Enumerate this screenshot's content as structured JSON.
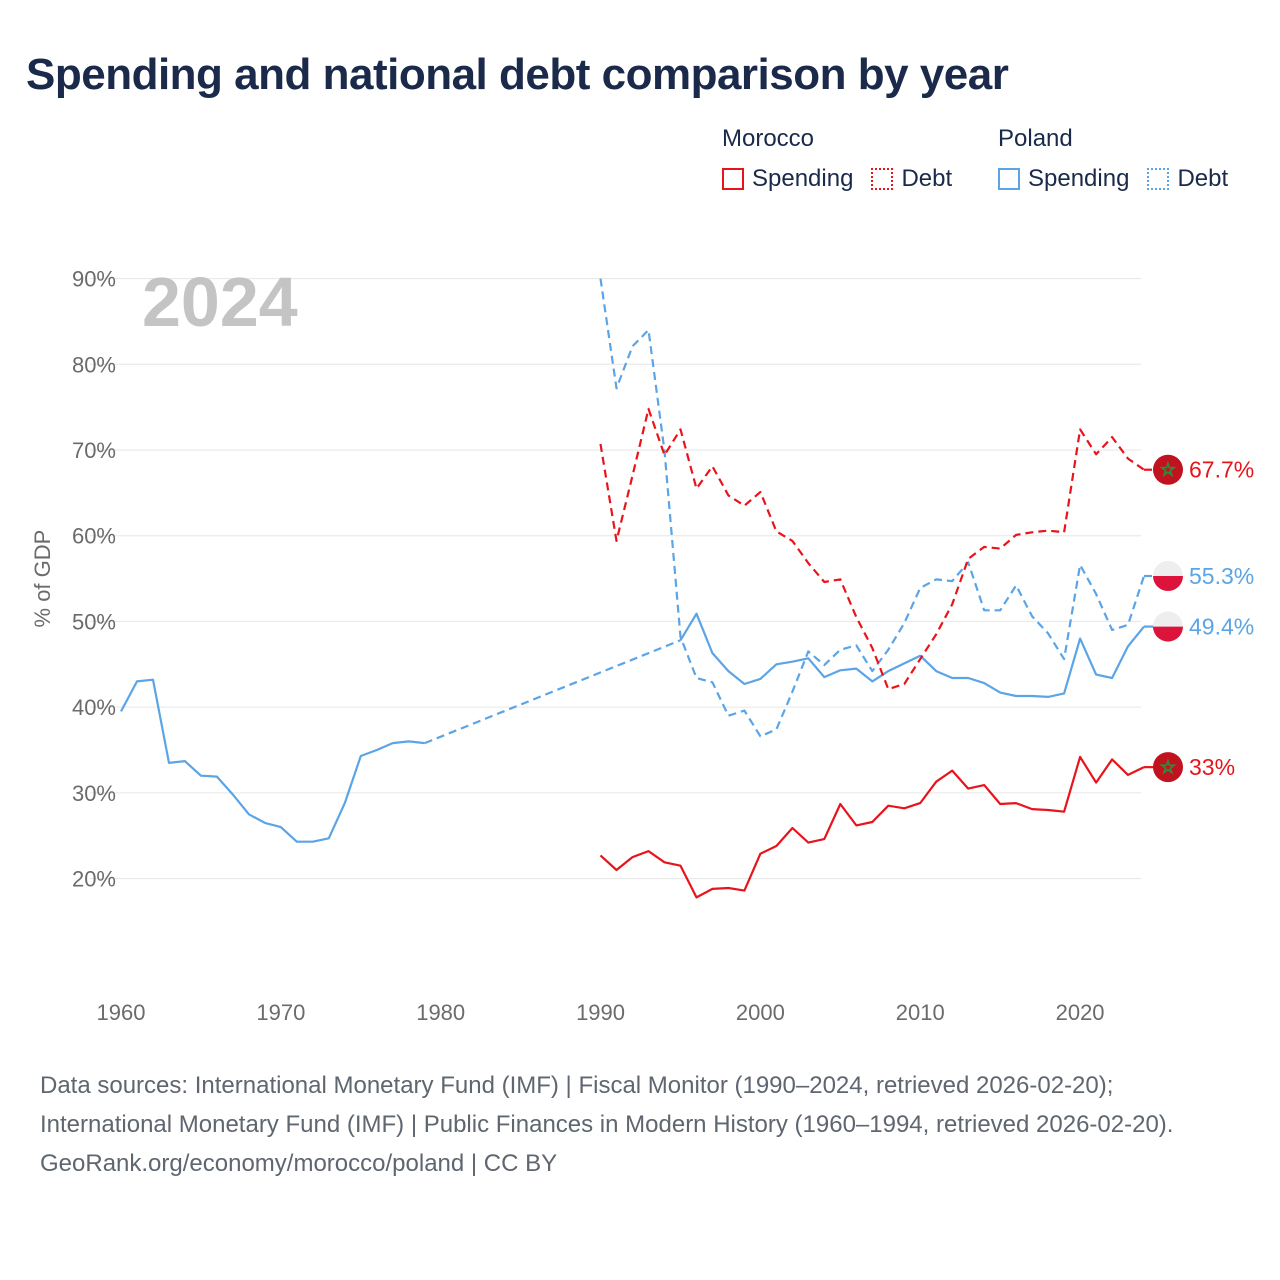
{
  "title": "Spending and national debt comparison by year",
  "legend": {
    "groups": [
      {
        "name": "Morocco",
        "color": "#e8141c",
        "items": [
          {
            "label": "Spending",
            "style": "solid"
          },
          {
            "label": "Debt",
            "style": "dotted"
          }
        ]
      },
      {
        "name": "Poland",
        "color": "#5ba4e6",
        "items": [
          {
            "label": "Spending",
            "style": "solid"
          },
          {
            "label": "Debt",
            "style": "dotted"
          }
        ]
      }
    ]
  },
  "footer": {
    "sources": "Data sources: International Monetary Fund (IMF) | Fiscal Monitor (1990–2024, retrieved 2026-02-20); International Monetary Fund (IMF) | Public Finances in Modern History (1960–1994, retrieved 2026-02-20).",
    "credit": "GeoRank.org/economy/morocco/poland | CC BY"
  },
  "chart_data": {
    "type": "line",
    "title": "Spending and national debt comparison by year",
    "year_watermark": "2024",
    "ylabel": "% of GDP",
    "xlabel": "",
    "xlim": [
      1960,
      2025.5
    ],
    "ylim": [
      14,
      91
    ],
    "x_ticks": [
      1960,
      1970,
      1980,
      1990,
      2000,
      2010,
      2020
    ],
    "y_ticks": [
      20,
      30,
      40,
      50,
      60,
      70,
      80,
      90
    ],
    "y_tick_suffix": "%",
    "grid": true,
    "series": [
      {
        "name": "Poland Spending",
        "country": "Poland",
        "metric": "Spending",
        "color": "#5ba4e6",
        "dash": "solid",
        "end_label": "49.4%",
        "flag": "poland",
        "x": [
          1960,
          1961,
          1962,
          1963,
          1964,
          1965,
          1966,
          1967,
          1968,
          1969,
          1970,
          1971,
          1972,
          1973,
          1974,
          1975,
          1976,
          1977,
          1978,
          1979,
          1995,
          1996,
          1997,
          1998,
          1999,
          2000,
          2001,
          2002,
          2003,
          2004,
          2005,
          2006,
          2007,
          2008,
          2009,
          2010,
          2011,
          2012,
          2013,
          2014,
          2015,
          2016,
          2017,
          2018,
          2019,
          2020,
          2021,
          2022,
          2023,
          2024
        ],
        "y": [
          39.5,
          43.0,
          43.2,
          33.5,
          33.7,
          32.0,
          31.9,
          29.8,
          27.5,
          26.5,
          26.0,
          24.3,
          24.3,
          24.7,
          28.8,
          34.3,
          35.0,
          35.8,
          36.0,
          35.8,
          47.8,
          50.9,
          46.3,
          44.2,
          42.7,
          43.3,
          45.0,
          45.3,
          45.7,
          43.5,
          44.3,
          44.5,
          43.0,
          44.2,
          45.1,
          46.0,
          44.2,
          43.4,
          43.4,
          42.8,
          41.7,
          41.3,
          41.3,
          41.2,
          41.6,
          48.0,
          43.8,
          43.4,
          47.1,
          49.4
        ],
        "gap": [
          1979,
          1995
        ]
      },
      {
        "name": "Poland Debt",
        "country": "Poland",
        "metric": "Debt",
        "color": "#5ba4e6",
        "dash": "dashed",
        "end_label": "55.3%",
        "flag": "poland",
        "x": [
          1990,
          1991,
          1992,
          1993,
          1994,
          1995,
          1996,
          1997,
          1998,
          1999,
          2000,
          2001,
          2002,
          2003,
          2004,
          2005,
          2006,
          2007,
          2008,
          2009,
          2010,
          2011,
          2012,
          2013,
          2014,
          2015,
          2016,
          2017,
          2018,
          2019,
          2020,
          2021,
          2022,
          2023,
          2024
        ],
        "y": [
          90.0,
          77.2,
          82.1,
          84.0,
          69.9,
          48.2,
          43.4,
          42.9,
          39.0,
          39.6,
          36.6,
          37.4,
          41.8,
          46.5,
          44.9,
          46.7,
          47.2,
          44.2,
          46.7,
          49.8,
          53.9,
          54.9,
          54.7,
          56.9,
          51.3,
          51.3,
          54.2,
          50.6,
          48.6,
          45.6,
          56.6,
          53.2,
          49.0,
          49.6,
          55.3
        ]
      },
      {
        "name": "Morocco Spending",
        "country": "Morocco",
        "metric": "Spending",
        "color": "#e8141c",
        "dash": "solid",
        "end_label": "33%",
        "flag": "morocco",
        "x": [
          1990,
          1991,
          1992,
          1993,
          1994,
          1995,
          1996,
          1997,
          1998,
          1999,
          2000,
          2001,
          2002,
          2003,
          2004,
          2005,
          2006,
          2007,
          2008,
          2009,
          2010,
          2011,
          2012,
          2013,
          2014,
          2015,
          2016,
          2017,
          2018,
          2019,
          2020,
          2021,
          2022,
          2023,
          2024
        ],
        "y": [
          22.7,
          21.0,
          22.5,
          23.2,
          21.9,
          21.5,
          17.8,
          18.8,
          18.9,
          18.6,
          22.9,
          23.8,
          25.9,
          24.2,
          24.6,
          28.7,
          26.2,
          26.6,
          28.5,
          28.2,
          28.8,
          31.3,
          32.6,
          30.5,
          30.9,
          28.7,
          28.8,
          28.1,
          28.0,
          27.8,
          34.2,
          31.2,
          33.9,
          32.1,
          33.0
        ]
      },
      {
        "name": "Morocco Debt",
        "country": "Morocco",
        "metric": "Debt",
        "color": "#e8141c",
        "dash": "dashed",
        "end_label": "67.7%",
        "flag": "morocco",
        "x": [
          1990,
          1991,
          1992,
          1993,
          1994,
          1995,
          1996,
          1997,
          1998,
          1999,
          2000,
          2001,
          2002,
          2003,
          2004,
          2005,
          2006,
          2007,
          2008,
          2009,
          2010,
          2011,
          2012,
          2013,
          2014,
          2015,
          2016,
          2017,
          2018,
          2019,
          2020,
          2021,
          2022,
          2023,
          2024
        ],
        "y": [
          70.7,
          59.4,
          67.0,
          74.8,
          69.4,
          72.4,
          65.5,
          68.1,
          64.7,
          63.5,
          65.1,
          60.5,
          59.4,
          56.8,
          54.6,
          54.9,
          50.5,
          46.9,
          42.1,
          42.7,
          45.6,
          48.5,
          52.0,
          57.3,
          58.7,
          58.5,
          60.1,
          60.4,
          60.6,
          60.4,
          72.4,
          69.5,
          71.5,
          69.0,
          67.7
        ]
      }
    ]
  }
}
